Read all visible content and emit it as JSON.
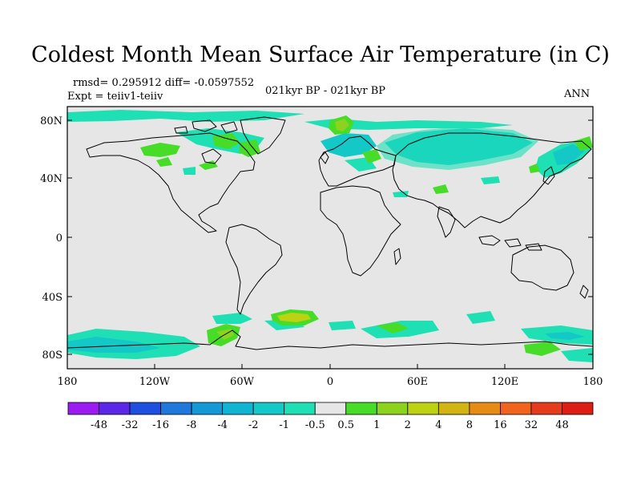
{
  "title": "Coldest Month Mean Surface Air Temperature (in C)",
  "stats": "rmsd= 0.295912 diff= -0.0597552",
  "experiment": "Expt = teiiv1-teiiv",
  "period": "021kyr BP - 021kyr BP",
  "season": "ANN",
  "axes": {
    "lat_labels": [
      "80N",
      "40N",
      "0",
      "40S",
      "80S"
    ],
    "lon_labels": [
      "180",
      "120W",
      "60W",
      "0",
      "60E",
      "120E",
      "180"
    ]
  },
  "colorbar": {
    "labels": [
      "-48",
      "-32",
      "-16",
      "-8",
      "-4",
      "-2",
      "-1",
      "-0.5",
      "0.5",
      "1",
      "2",
      "4",
      "8",
      "16",
      "32",
      "48"
    ],
    "colors": [
      "#9b1bf0",
      "#5a28e6",
      "#1e50e0",
      "#1f78dc",
      "#1598d6",
      "#12b4d4",
      "#14c8c8",
      "#1ee0b4",
      "#e6e6e6",
      "#46dc28",
      "#8cd21e",
      "#bed214",
      "#d2b414",
      "#e68c14",
      "#f0641e",
      "#e63c1e",
      "#dc1e14"
    ]
  },
  "colors": {
    "map_background": "#e6e6e6",
    "coastline": "#000000"
  }
}
